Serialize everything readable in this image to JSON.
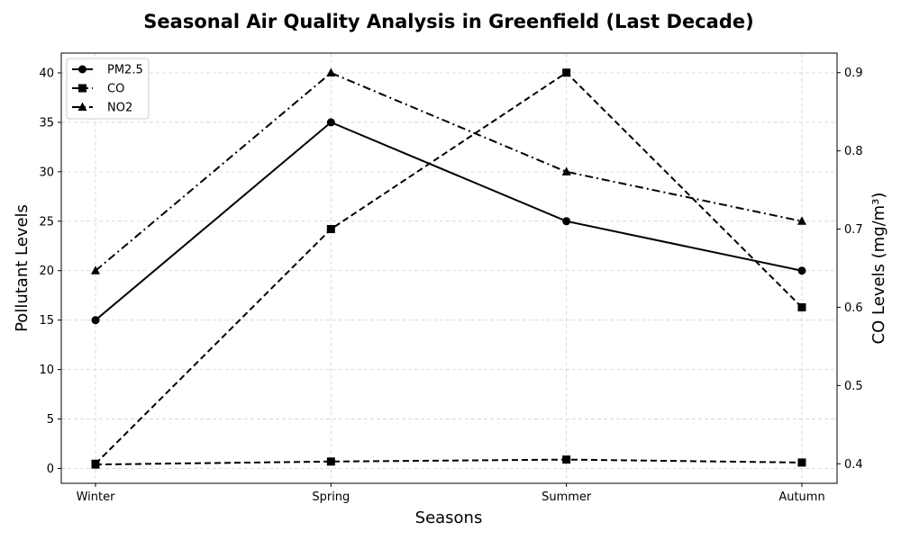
{
  "chart_data": {
    "type": "line",
    "title": "Seasonal Air Quality Analysis in Greenfield (Last Decade)",
    "xlabel": "Seasons",
    "ylabel": "Pollutant Levels",
    "ylabel_right": "CO Levels (mg/m³)",
    "categories": [
      "Winter",
      "Spring",
      "Summer",
      "Autumn"
    ],
    "ylim": [
      -1.5,
      42
    ],
    "ylim_right": [
      0.375,
      0.925
    ],
    "yticks": [
      0,
      5,
      10,
      15,
      20,
      25,
      30,
      35,
      40
    ],
    "yticks_right": [
      0.4,
      0.5,
      0.6,
      0.7,
      0.8,
      0.9
    ],
    "grid": true,
    "legend_position": "top-left",
    "series": [
      {
        "name": "PM2.5",
        "axis": "left",
        "values": [
          15,
          35,
          25,
          20
        ],
        "marker": "circle",
        "dash": "solid"
      },
      {
        "name": "CO",
        "axis": "left",
        "values": [
          0.4,
          0.7,
          0.9,
          0.6
        ],
        "marker": "square",
        "dash": "dashed",
        "legend": true
      },
      {
        "name": "NO2",
        "axis": "left",
        "values": [
          20,
          40,
          30,
          25
        ],
        "marker": "triangle",
        "dash": "dashdot"
      },
      {
        "name": "CO",
        "axis": "right",
        "values": [
          0.4,
          0.7,
          0.9,
          0.6
        ],
        "marker": "square",
        "dash": "dashed",
        "legend": false
      }
    ],
    "colors": {
      "line": "#000000",
      "grid": "#d3d3d3",
      "background": "#ffffff"
    }
  }
}
